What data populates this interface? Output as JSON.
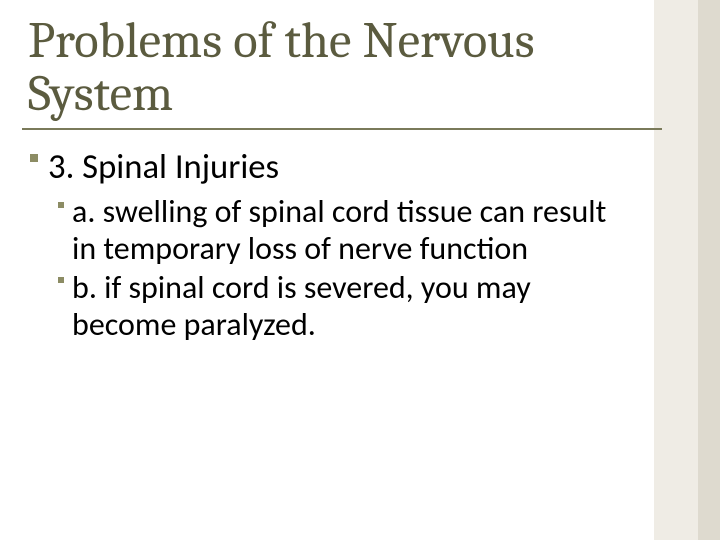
{
  "slide": {
    "background_color": "#ffffff",
    "title": {
      "text": "Problems of the Nervous System",
      "color": "#5b5b3f",
      "fontsize_pt": 38
    },
    "underline_color": "#7a7a5a",
    "stripe_outer_color": "#dedacf",
    "stripe_inner_color": "#efece5",
    "bullets": {
      "level1": {
        "text": "3. Spinal Injuries",
        "fontsize_pt": 26,
        "dot_color": "#8c8c64"
      },
      "level2": [
        {
          "text": "a. swelling of spinal cord tissue can result in temporary loss of nerve function",
          "fontsize_pt": 24,
          "dot_color": "#8c8c64"
        },
        {
          "text": "b. if spinal cord is severed, you may become paralyzed.",
          "fontsize_pt": 24,
          "dot_color": "#8c8c64"
        }
      ]
    }
  }
}
